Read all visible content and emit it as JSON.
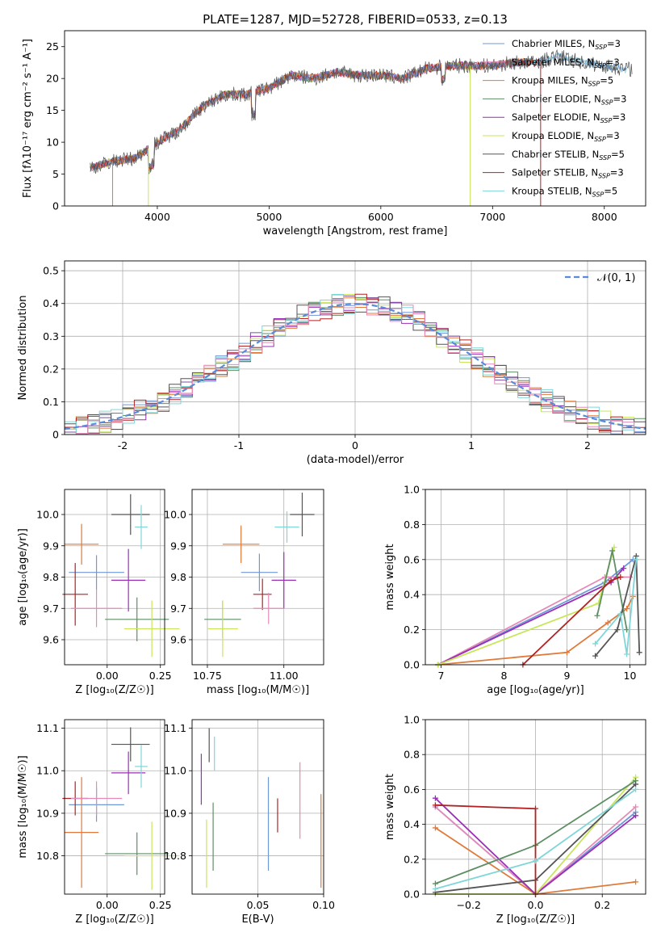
{
  "colors": [
    "#6f98d6",
    "#e07a3a",
    "#7a4fa0",
    "#5e8f64",
    "#9b2fb8",
    "#c7e65a",
    "#555555",
    "#b22222",
    "#7fd6d8",
    "#e58ab8"
  ],
  "chart_data": [
    {
      "type": "line",
      "title": "PLATE=1287, MJD=52728, FIBERID=0533, z=0.13",
      "xlabel": "wavelength [Angstrom, rest frame]",
      "ylabel": "Flux [fλ10⁻¹⁷ erg cm⁻² s⁻¹ A⁻¹]",
      "xlim": [
        3170,
        8370
      ],
      "ylim": [
        0,
        27.5
      ],
      "xticks": [
        4000,
        5000,
        6000,
        7000,
        8000
      ],
      "yticks": [
        0,
        5,
        10,
        15,
        20,
        25
      ],
      "legend": "top-right",
      "series": [
        {
          "name": "Chabrier MILES, N",
          "sub": "SSP",
          "suffix": "=3",
          "color": "#6f98d6"
        },
        {
          "name": "Salpeter MILES, N",
          "sub": "SSP",
          "suffix": "=3",
          "color": "#e58ab8"
        },
        {
          "name": "Kroupa MILES, N",
          "sub": "SSP",
          "suffix": "=5",
          "color": "#e07a3a"
        },
        {
          "name": "Chabrier ELODIE, N",
          "sub": "SSP",
          "suffix": "=3",
          "color": "#5e8f64"
        },
        {
          "name": "Salpeter ELODIE, N",
          "sub": "SSP",
          "suffix": "=3",
          "color": "#9b2fb8"
        },
        {
          "name": "Kroupa ELODIE, N",
          "sub": "SSP",
          "suffix": "=3",
          "color": "#c7e65a"
        },
        {
          "name": "Chabrier STELIB, N",
          "sub": "SSP",
          "suffix": "=5",
          "color": "#555555"
        },
        {
          "name": "Salpeter STELIB, N",
          "sub": "SSP",
          "suffix": "=3",
          "color": "#b22222"
        },
        {
          "name": "Kroupa STELIB, N",
          "sub": "SSP",
          "suffix": "=5",
          "color": "#7fd6d8"
        }
      ],
      "data_envelope": {
        "x": [
          3400,
          3600,
          3800,
          4000,
          4200,
          4400,
          4600,
          4800,
          5000,
          5200,
          5400,
          5600,
          5800,
          6000,
          6200,
          6400,
          6600,
          6800,
          7000,
          7200,
          7400,
          7600,
          7800,
          8000,
          8200
        ],
        "y": [
          6,
          7,
          7.5,
          10,
          12,
          15.5,
          17.5,
          17.5,
          18.5,
          20.5,
          20,
          21,
          20.5,
          20.5,
          20,
          21.5,
          22,
          22,
          22,
          22.5,
          22.5,
          23.5,
          22.5,
          22,
          21.5
        ]
      }
    },
    {
      "type": "histogram",
      "xlabel": "(data-model)/error",
      "ylabel": "Normed distribution",
      "xlim": [
        -2.5,
        2.5
      ],
      "ylim": [
        0,
        0.53
      ],
      "xticks": [
        -2,
        -1,
        0,
        1,
        2
      ],
      "yticks": [
        0.0,
        0.1,
        0.2,
        0.3,
        0.4,
        0.5
      ],
      "legend_label": "𝒩(0, 1)",
      "legend": "top-right",
      "bin_width": 0.1
    },
    {
      "type": "errorbar",
      "xlabel": "Z [log₁₀(Z/Z☉)]",
      "ylabel": "age  [log₁₀(age/yr)]",
      "xlim": [
        -0.2,
        0.27
      ],
      "ylim": [
        9.52,
        10.08
      ],
      "xticks": [
        0.0,
        0.25
      ],
      "xticklabels": [
        "0.00",
        "0.25"
      ],
      "yticks": [
        9.6,
        9.7,
        9.8,
        9.9,
        10.0
      ],
      "yticklabels": [
        "9.6",
        "9.7",
        "9.8",
        "9.9",
        "10.0"
      ],
      "points": [
        {
          "x": -0.05,
          "y": 9.815,
          "xerr": 0.13,
          "yerr": 0.055,
          "color": "#6f98d6"
        },
        {
          "x": -0.12,
          "y": 9.905,
          "xerr": 0.08,
          "yerr": 0.065,
          "color": "#e07a3a"
        },
        {
          "x": 0.14,
          "y": 9.665,
          "xerr": 0.15,
          "yerr": 0.07,
          "color": "#5e8f64"
        },
        {
          "x": 0.1,
          "y": 9.79,
          "xerr": 0.08,
          "yerr": 0.1,
          "color": "#9b2fb8"
        },
        {
          "x": 0.21,
          "y": 9.635,
          "xerr": 0.13,
          "yerr": 0.09,
          "color": "#c7e65a"
        },
        {
          "x": 0.11,
          "y": 10.0,
          "xerr": 0.09,
          "yerr": 0.065,
          "color": "#555555"
        },
        {
          "x": -0.15,
          "y": 9.745,
          "xerr": 0.06,
          "yerr": 0.1,
          "color": "#b22222"
        },
        {
          "x": 0.16,
          "y": 9.96,
          "xerr": 0.03,
          "yerr": 0.07,
          "color": "#7fd6d8"
        },
        {
          "x": -0.05,
          "y": 9.7,
          "xerr": 0.12,
          "yerr": 0.06,
          "color": "#e58ab8"
        }
      ]
    },
    {
      "type": "errorbar",
      "xlabel": "mass [log₁₀(M/M☉)]",
      "ylabel": "",
      "xlim": [
        10.7,
        11.13
      ],
      "ylim": [
        9.52,
        10.08
      ],
      "xticks": [
        10.75,
        11.0
      ],
      "xticklabels": [
        "10.75",
        "11.00"
      ],
      "yticks": [
        9.6,
        9.7,
        9.8,
        9.9,
        10.0
      ],
      "yticklabels": [
        "9.6",
        "9.7",
        "9.8",
        "9.9",
        "10.0"
      ],
      "points": [
        {
          "x": 10.92,
          "y": 9.815,
          "xerr": 0.06,
          "yerr": 0.06,
          "color": "#6f98d6"
        },
        {
          "x": 10.86,
          "y": 9.905,
          "xerr": 0.06,
          "yerr": 0.06,
          "color": "#e07a3a"
        },
        {
          "x": 10.8,
          "y": 9.665,
          "xerr": 0.06,
          "yerr": 0.06,
          "color": "#5e8f64"
        },
        {
          "x": 11.0,
          "y": 9.79,
          "xerr": 0.04,
          "yerr": 0.09,
          "color": "#9b2fb8"
        },
        {
          "x": 10.8,
          "y": 9.635,
          "xerr": 0.05,
          "yerr": 0.09,
          "color": "#c7e65a"
        },
        {
          "x": 11.06,
          "y": 10.0,
          "xerr": 0.04,
          "yerr": 0.07,
          "color": "#555555"
        },
        {
          "x": 10.93,
          "y": 9.745,
          "xerr": 0.03,
          "yerr": 0.05,
          "color": "#b22222"
        },
        {
          "x": 11.01,
          "y": 9.96,
          "xerr": 0.04,
          "yerr": 0.05,
          "color": "#7fd6d8"
        },
        {
          "x": 10.95,
          "y": 9.7,
          "xerr": 0.05,
          "yerr": 0.05,
          "color": "#e58ab8"
        }
      ]
    },
    {
      "type": "line",
      "xlabel": "age  [log₁₀(age/yr)]",
      "ylabel": "mass weight",
      "xlim": [
        6.75,
        10.25
      ],
      "ylim": [
        0,
        1
      ],
      "xticks": [
        7,
        8,
        9,
        10
      ],
      "xticklabels": [
        "7",
        "8",
        "9",
        "10"
      ],
      "yticks": [
        0,
        0.2,
        0.4,
        0.6,
        0.8,
        1.0
      ],
      "yticklabels": [
        "0.0",
        "0.2",
        "0.4",
        "0.6",
        "0.8",
        "1.0"
      ],
      "series": [
        {
          "color": "#6f98d6",
          "points": [
            [
              6.95,
              0
            ],
            [
              9.6,
              0.47
            ],
            [
              10.05,
              0.6
            ]
          ]
        },
        {
          "color": "#e58ab8",
          "points": [
            [
              6.95,
              0
            ],
            [
              9.6,
              0.5
            ],
            [
              10.0,
              0.5
            ]
          ]
        },
        {
          "color": "#e07a3a",
          "points": [
            [
              6.95,
              0
            ],
            [
              9.0,
              0.07
            ],
            [
              9.65,
              0.24
            ],
            [
              9.95,
              0.32
            ],
            [
              10.05,
              0.39
            ]
          ]
        },
        {
          "color": "#9b2fb8",
          "points": [
            [
              6.95,
              0
            ],
            [
              9.7,
              0.47
            ],
            [
              9.9,
              0.55
            ]
          ]
        },
        {
          "color": "#c7e65a",
          "points": [
            [
              6.95,
              0
            ],
            [
              9.5,
              0.35
            ],
            [
              9.75,
              0.67
            ]
          ]
        },
        {
          "color": "#5e8f64",
          "points": [
            [
              9.48,
              0.28
            ],
            [
              9.72,
              0.65
            ],
            [
              9.95,
              0.2
            ]
          ]
        },
        {
          "color": "#555555",
          "points": [
            [
              9.45,
              0.05
            ],
            [
              9.8,
              0.2
            ],
            [
              10.1,
              0.62
            ],
            [
              10.15,
              0.07
            ]
          ]
        },
        {
          "color": "#b22222",
          "points": [
            [
              8.3,
              0
            ],
            [
              9.7,
              0.48
            ],
            [
              9.85,
              0.5
            ]
          ]
        },
        {
          "color": "#7fd6d8",
          "points": [
            [
              9.45,
              0.12
            ],
            [
              9.85,
              0.29
            ],
            [
              9.95,
              0.06
            ],
            [
              10.1,
              0.6
            ]
          ]
        }
      ]
    },
    {
      "type": "errorbar",
      "xlabel": "Z [log₁₀(Z/Z☉)]",
      "ylabel": "mass [log₁₀(M/M☉)]",
      "xlim": [
        -0.2,
        0.27
      ],
      "ylim": [
        10.71,
        11.12
      ],
      "xticks": [
        0.0,
        0.25
      ],
      "xticklabels": [
        "0.00",
        "0.25"
      ],
      "yticks": [
        10.8,
        10.9,
        11.0,
        11.1
      ],
      "yticklabels": [
        "10.8",
        "10.9",
        "11.0",
        "11.1"
      ],
      "points": [
        {
          "x": -0.05,
          "y": 10.92,
          "xerr": 0.13,
          "yerr": 0.04,
          "color": "#6f98d6"
        },
        {
          "x": -0.12,
          "y": 10.855,
          "xerr": 0.08,
          "yerr": 0.13,
          "color": "#e07a3a"
        },
        {
          "x": 0.14,
          "y": 10.805,
          "xerr": 0.15,
          "yerr": 0.05,
          "color": "#5e8f64"
        },
        {
          "x": 0.1,
          "y": 10.995,
          "xerr": 0.08,
          "yerr": 0.05,
          "color": "#9b2fb8"
        },
        {
          "x": 0.21,
          "y": 10.8,
          "xerr": 0.13,
          "yerr": 0.08,
          "color": "#c7e65a"
        },
        {
          "x": 0.11,
          "y": 11.062,
          "xerr": 0.09,
          "yerr": 0.04,
          "color": "#555555"
        },
        {
          "x": -0.15,
          "y": 10.935,
          "xerr": 0.06,
          "yerr": 0.04,
          "color": "#b22222"
        },
        {
          "x": 0.16,
          "y": 11.01,
          "xerr": 0.03,
          "yerr": 0.05,
          "color": "#7fd6d8"
        },
        {
          "x": -0.05,
          "y": 10.935,
          "xerr": 0.12,
          "yerr": 0.04,
          "color": "#e58ab8"
        }
      ]
    },
    {
      "type": "errorbar",
      "xlabel": "E(B-V)",
      "ylabel": "",
      "xlim": [
        0.0,
        0.1
      ],
      "ylim": [
        10.71,
        11.12
      ],
      "xticks": [
        0.05,
        0.1
      ],
      "xticklabels": [
        "0.05",
        "0.10"
      ],
      "yticks": [
        10.8,
        10.9,
        11.0,
        11.1
      ],
      "yticklabels": [
        "10.8",
        "10.9",
        "11.0",
        "11.1"
      ],
      "points": [
        {
          "x": 0.058,
          "y": 10.875,
          "xerr": 0,
          "yerr": 0.11,
          "color": "#6f98d6"
        },
        {
          "x": 0.098,
          "y": 10.835,
          "xerr": 0,
          "yerr": 0.11,
          "color": "#e07a3a"
        },
        {
          "x": 0.016,
          "y": 10.845,
          "xerr": 0,
          "yerr": 0.08,
          "color": "#5e8f64"
        },
        {
          "x": 0.007,
          "y": 10.98,
          "xerr": 0,
          "yerr": 0.06,
          "color": "#9b2fb8"
        },
        {
          "x": 0.011,
          "y": 10.805,
          "xerr": 0,
          "yerr": 0.08,
          "color": "#c7e65a"
        },
        {
          "x": 0.013,
          "y": 11.06,
          "xerr": 0,
          "yerr": 0.04,
          "color": "#555555"
        },
        {
          "x": 0.065,
          "y": 10.895,
          "xerr": 0,
          "yerr": 0.04,
          "color": "#b22222"
        },
        {
          "x": 0.017,
          "y": 11.04,
          "xerr": 0,
          "yerr": 0.04,
          "color": "#7fd6d8"
        },
        {
          "x": 0.082,
          "y": 10.93,
          "xerr": 0,
          "yerr": 0.09,
          "color": "#e58ab8"
        }
      ]
    },
    {
      "type": "line",
      "xlabel": "Z [log₁₀(Z/Z☉)]",
      "ylabel": "mass weight",
      "xlim": [
        -0.33,
        0.33
      ],
      "ylim": [
        0,
        1
      ],
      "xticks": [
        -0.2,
        0.0,
        0.2
      ],
      "xticklabels": [
        "−0.2",
        "0.0",
        "0.2"
      ],
      "yticks": [
        0,
        0.2,
        0.4,
        0.6,
        0.8,
        1.0
      ],
      "yticklabels": [
        "0.0",
        "0.2",
        "0.4",
        "0.6",
        "0.8",
        "1.0"
      ],
      "series": [
        {
          "color": "#6f98d6",
          "points": [
            [
              -0.3,
              0.5
            ],
            [
              0.0,
              0.0
            ],
            [
              0.3,
              0.47
            ]
          ]
        },
        {
          "color": "#e58ab8",
          "points": [
            [
              -0.3,
              0.5
            ],
            [
              0.0,
              0.0
            ],
            [
              0.3,
              0.5
            ]
          ]
        },
        {
          "color": "#e07a3a",
          "points": [
            [
              -0.3,
              0.38
            ],
            [
              0.0,
              0.0
            ],
            [
              0.3,
              0.07
            ]
          ]
        },
        {
          "color": "#9b2fb8",
          "points": [
            [
              -0.3,
              0.55
            ],
            [
              0.0,
              0.0
            ],
            [
              0.3,
              0.45
            ]
          ]
        },
        {
          "color": "#c7e65a",
          "points": [
            [
              -0.3,
              0.0
            ],
            [
              0.0,
              0.0
            ],
            [
              0.3,
              0.67
            ]
          ]
        },
        {
          "color": "#5e8f64",
          "points": [
            [
              -0.3,
              0.06
            ],
            [
              0.0,
              0.28
            ],
            [
              0.3,
              0.65
            ]
          ]
        },
        {
          "color": "#555555",
          "points": [
            [
              -0.3,
              0.01
            ],
            [
              0.0,
              0.08
            ],
            [
              0.3,
              0.63
            ]
          ]
        },
        {
          "color": "#b22222",
          "points": [
            [
              -0.3,
              0.51
            ],
            [
              0.0,
              0.49
            ],
            [
              0.0,
              0.0
            ]
          ]
        },
        {
          "color": "#7fd6d8",
          "points": [
            [
              -0.3,
              0.03
            ],
            [
              0.0,
              0.19
            ],
            [
              0.3,
              0.6
            ]
          ]
        }
      ]
    }
  ]
}
